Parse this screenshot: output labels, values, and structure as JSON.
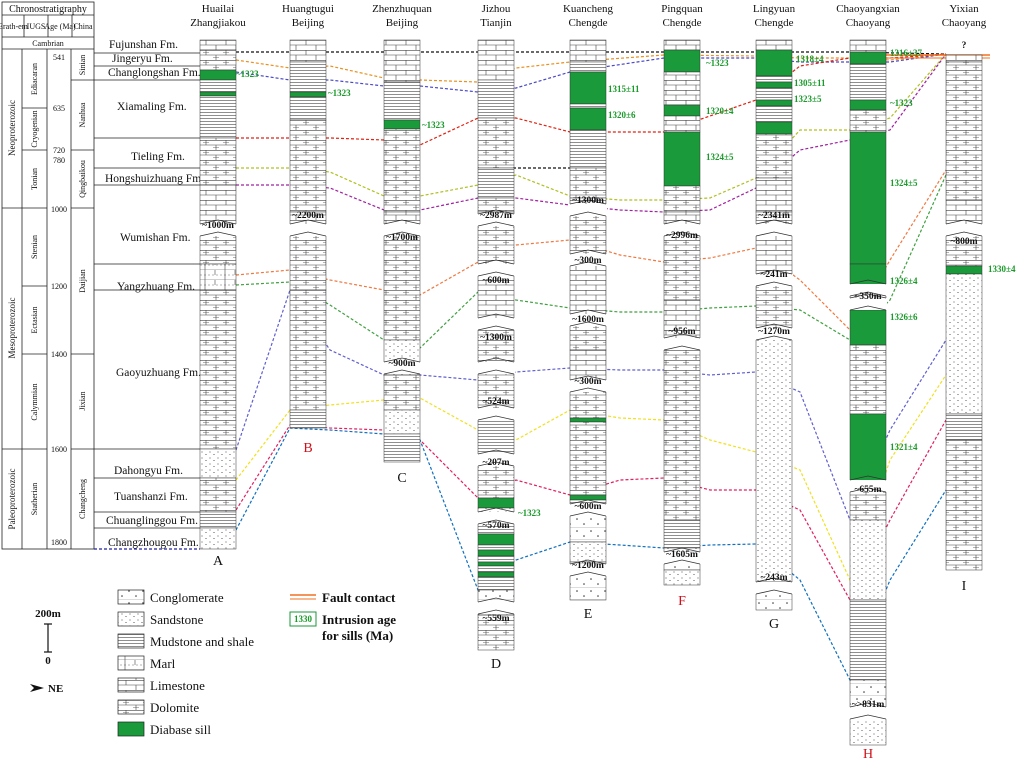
{
  "chronostratigraphy": {
    "title": "Chronostratigraphy",
    "headers": [
      "Erath-em",
      "IUGS",
      "Age (Ma)",
      "China"
    ],
    "cambrian": "Cambrian",
    "eras": [
      "Neoproterozoic",
      "Mesoproterozoic",
      "Paleoproterozoic"
    ],
    "iugs_periods": [
      "Ediacaran",
      "Cryogenian",
      "Tonian",
      "Stenian",
      "Ectasian",
      "Calymmian",
      "Statherian"
    ],
    "china_units": [
      "Sinian",
      "Nanhua",
      "Qingbaikou",
      "Daijian",
      "Jixian",
      "Changcheng"
    ],
    "ages": [
      "541",
      "635",
      "720",
      "780",
      "1000",
      "1200",
      "1400",
      "1600",
      "1800"
    ]
  },
  "formations": [
    "Fujunshan Fm.",
    "Jingeryu Fm.",
    "Changlongshan Fm.",
    "Xiamaling Fm.",
    "Tieling Fm.",
    "Hongshuizhuang Fm.",
    "Wumishan Fm.",
    "Yangzhuang Fm.",
    "Gaoyuzhuang Fm.",
    "Dahongyu Fm.",
    "Tuanshanzi Fm.",
    "Chuanglinggou Fm.",
    "Changzhougou Fm."
  ],
  "sections": [
    {
      "letter": "A",
      "place": "Huailai",
      "city": "Zhangjiakou",
      "highlight": false
    },
    {
      "letter": "B",
      "place": "Huangtugui",
      "city": "Beijing",
      "highlight": true
    },
    {
      "letter": "C",
      "place": "Zhenzhuquan",
      "city": "Beijing",
      "highlight": false
    },
    {
      "letter": "D",
      "place": "Jizhou",
      "city": "Tianjin",
      "highlight": false
    },
    {
      "letter": "E",
      "place": "Kuancheng",
      "city": "Chengde",
      "highlight": false
    },
    {
      "letter": "F",
      "place": "Pingquan",
      "city": "Chengde",
      "highlight": true
    },
    {
      "letter": "G",
      "place": "Lingyuan",
      "city": "Chengde",
      "highlight": false
    },
    {
      "letter": "H",
      "place": "Chaoyangxian",
      "city": "Chaoyang",
      "highlight": true
    },
    {
      "letter": "I",
      "place": "Yixian",
      "city": "Chaoyang",
      "highlight": false
    }
  ],
  "thickness_labels": {
    "A": [
      "~1000m"
    ],
    "B": [
      "~2200m"
    ],
    "C": [
      "~1700m",
      "~900m"
    ],
    "D": [
      "~2987m",
      "~600m",
      "~1300m",
      "~524m",
      "~207m",
      "~570m",
      "~559m"
    ],
    "E": [
      "~1300m",
      "~300m",
      "~1600m",
      "~300m",
      "~600m",
      "~1200m"
    ],
    "F": [
      "~2996m",
      "~956m",
      "~1605m"
    ],
    "G": [
      "~2341m",
      "~241m",
      "~1270m",
      "~243m"
    ],
    "H": [
      "~350m",
      "~655m",
      "~>831m"
    ],
    "I": [
      "~800m",
      "?"
    ]
  },
  "intrusion_ages": {
    "A": [
      "~1323"
    ],
    "B": [
      "~1323"
    ],
    "C": [
      "~1323"
    ],
    "D": [
      "~1323"
    ],
    "E": [
      "1315±11",
      "1320±6"
    ],
    "F": [
      "~1323",
      "1320±4",
      "1324±5"
    ],
    "G": [
      "1318±4",
      "1305±11",
      "1323±5"
    ],
    "H": [
      "1316±37",
      "~1323",
      "1324±5",
      "1326±4",
      "1326±6",
      "1321±4"
    ],
    "I": [
      "1330±4"
    ]
  },
  "legend": {
    "lithologies": [
      "Conglomerate",
      "Sandstone",
      "Mudstone and shale",
      "Marl",
      "Limestone",
      "Dolomite",
      "Diabase sill"
    ],
    "fault": "Fault contact",
    "intrusion_sample": "1330",
    "intrusion_label_1": "Intrusion age",
    "intrusion_label_2": "for sills (Ma)",
    "scale_top": "200m",
    "scale_bottom": "0",
    "north": "NE"
  },
  "colors": {
    "sill": "#1a9a3a",
    "age_text": "#1a9a2a",
    "highlight": "#d0101a",
    "fault": "#f07020"
  }
}
